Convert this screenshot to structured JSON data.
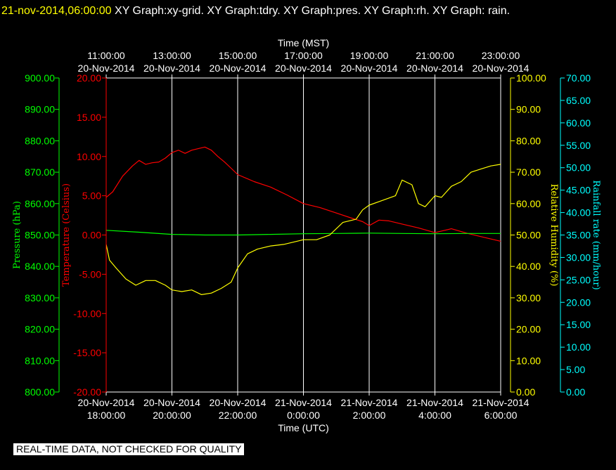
{
  "title": {
    "timestamp": "21-nov-2014,06:00:00",
    "graphs": "  XY Graph:xy-grid.  XY Graph:tdry.  XY Graph:pres.  XY Graph:rh.  XY Graph: rain."
  },
  "notice": "REAL-TIME DATA, NOT CHECKED FOR QUALITY",
  "colors": {
    "background": "#000000",
    "grid": "#ffffff",
    "temperature": "#ff0000",
    "pressure": "#00ff00",
    "humidity": "#ffff00",
    "rain": "#00ffff"
  },
  "chart_data": {
    "type": "line",
    "grid": true,
    "top_axis": {
      "label": "Time (MST)",
      "ticks": [
        {
          "time": "11:00:00",
          "date": "20-Nov-2014"
        },
        {
          "time": "13:00:00",
          "date": "20-Nov-2014"
        },
        {
          "time": "15:00:00",
          "date": "20-Nov-2014"
        },
        {
          "time": "17:00:00",
          "date": "20-Nov-2014"
        },
        {
          "time": "19:00:00",
          "date": "20-Nov-2014"
        },
        {
          "time": "21:00:00",
          "date": "20-Nov-2014"
        },
        {
          "time": "23:00:00",
          "date": "20-Nov-2014"
        }
      ]
    },
    "bottom_axis": {
      "label": "Time (UTC)",
      "ticks": [
        {
          "date": "20-Nov-2014",
          "time": "18:00:00"
        },
        {
          "date": "20-Nov-2014",
          "time": "20:00:00"
        },
        {
          "date": "20-Nov-2014",
          "time": "22:00:00"
        },
        {
          "date": "21-Nov-2014",
          "time": "0:00:00"
        },
        {
          "date": "21-Nov-2014",
          "time": "2:00:00"
        },
        {
          "date": "21-Nov-2014",
          "time": "4:00:00"
        },
        {
          "date": "21-Nov-2014",
          "time": "6:00:00"
        }
      ]
    },
    "x_range_utc_hours": [
      18,
      30
    ],
    "y_axes": {
      "pressure": {
        "label": "Pressure (hPa)",
        "range": [
          800,
          900
        ],
        "ticks": [
          "900.00",
          "890.00",
          "880.00",
          "870.00",
          "860.00",
          "850.00",
          "840.00",
          "830.00",
          "820.00",
          "810.00",
          "800.00"
        ]
      },
      "temperature": {
        "label": "Temperature (Celsius)",
        "range": [
          -20,
          20
        ],
        "ticks": [
          "20.00",
          "15.00",
          "10.00",
          "5.00",
          "0.00",
          "-5.00",
          "-10.00",
          "-15.00",
          "-20.00"
        ]
      },
      "humidity": {
        "label": "Relative Humidity (%)",
        "range": [
          0,
          100
        ],
        "ticks": [
          "100.00",
          "90.00",
          "80.00",
          "70.00",
          "60.00",
          "50.00",
          "40.00",
          "30.00",
          "20.00",
          "10.00",
          "0.00"
        ]
      },
      "rain": {
        "label": "Rainfall rate (mm/hour)",
        "range": [
          0,
          70
        ],
        "ticks": [
          "70.00",
          "65.00",
          "60.00",
          "55.00",
          "50.00",
          "45.00",
          "40.00",
          "35.00",
          "30.00",
          "25.00",
          "20.00",
          "15.00",
          "10.00",
          "5.00",
          "0.00"
        ]
      }
    },
    "series": [
      {
        "name": "tdry",
        "axis": "temperature",
        "x": [
          18.0,
          18.2,
          18.5,
          18.8,
          19.0,
          19.2,
          19.4,
          19.6,
          19.8,
          20.0,
          20.2,
          20.4,
          20.6,
          20.8,
          21.0,
          21.2,
          21.4,
          21.6,
          21.8,
          22.0,
          22.5,
          23.0,
          23.5,
          24.0,
          24.5,
          25.0,
          25.5,
          25.8,
          26.0,
          26.3,
          26.6,
          27.0,
          27.5,
          28.0,
          28.5,
          29.0,
          29.5,
          29.8,
          30.0
        ],
        "y": [
          4.8,
          5.5,
          7.5,
          8.8,
          9.5,
          9.0,
          9.2,
          9.3,
          9.8,
          10.5,
          10.8,
          10.4,
          10.8,
          11.0,
          11.2,
          10.8,
          10.0,
          9.3,
          8.5,
          7.7,
          6.8,
          6.1,
          5.1,
          4.0,
          3.5,
          2.8,
          2.1,
          1.7,
          1.2,
          1.9,
          1.8,
          1.4,
          0.9,
          0.3,
          0.8,
          0.2,
          -0.3,
          -0.6,
          -0.8
        ]
      },
      {
        "name": "pres",
        "axis": "pressure",
        "x": [
          18.0,
          19.0,
          20.0,
          21.0,
          22.0,
          23.0,
          24.0,
          25.0,
          26.0,
          27.0,
          28.0,
          29.0,
          30.0
        ],
        "y": [
          851.5,
          850.9,
          850.2,
          850.0,
          850.0,
          850.2,
          850.4,
          850.5,
          850.6,
          850.5,
          850.4,
          850.5,
          850.5
        ]
      },
      {
        "name": "rh",
        "axis": "humidity",
        "x": [
          18.0,
          18.1,
          18.3,
          18.6,
          18.9,
          19.2,
          19.5,
          19.8,
          20.0,
          20.3,
          20.6,
          20.9,
          21.2,
          21.5,
          21.8,
          22.0,
          22.3,
          22.6,
          23.0,
          23.4,
          23.8,
          24.0,
          24.4,
          24.8,
          25.2,
          25.6,
          25.8,
          26.0,
          26.4,
          26.8,
          27.0,
          27.3,
          27.5,
          27.7,
          28.0,
          28.2,
          28.5,
          28.8,
          29.1,
          29.4,
          29.7,
          30.0
        ],
        "y": [
          47.0,
          42.0,
          39.5,
          36.0,
          34.0,
          35.5,
          35.5,
          34.0,
          32.5,
          32.0,
          32.5,
          31.0,
          31.5,
          33.0,
          35.0,
          39.5,
          44.0,
          45.5,
          46.5,
          47.0,
          48.0,
          48.5,
          48.5,
          50.0,
          54.0,
          55.0,
          58.0,
          59.5,
          61.0,
          62.5,
          67.5,
          66.0,
          60.0,
          59.0,
          62.5,
          62.0,
          65.5,
          67.0,
          70.0,
          71.0,
          72.0,
          72.5
        ]
      },
      {
        "name": "rain",
        "axis": "rain",
        "x": [],
        "y": []
      }
    ]
  }
}
